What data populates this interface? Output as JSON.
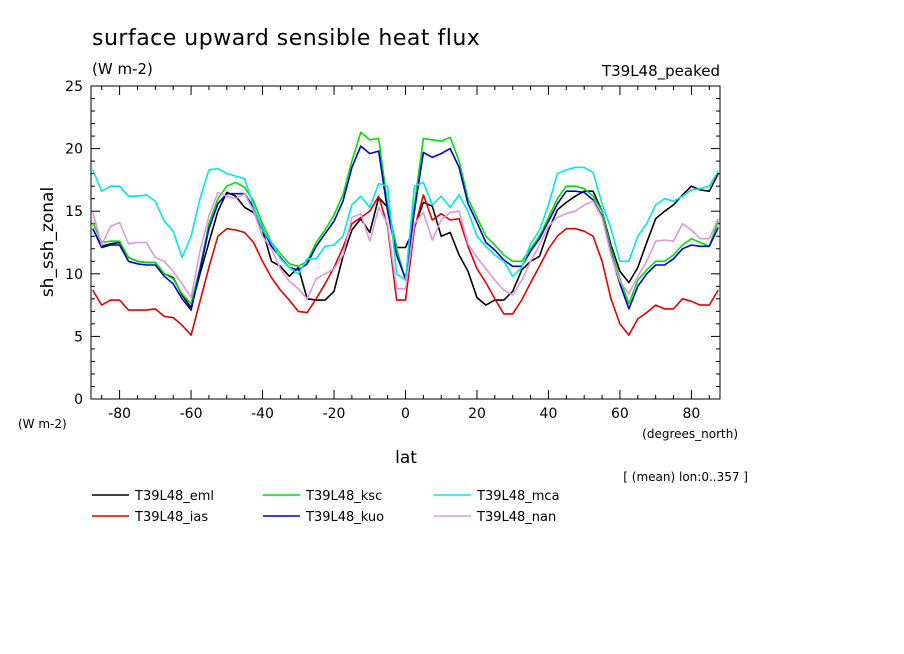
{
  "header": {
    "title": "surface upward sensible heat flux",
    "units": "(W m-2)",
    "experiment": "T39L48_peaked",
    "y_units_corner": "(W m-2)",
    "x_units_corner": "(degrees_north)",
    "mean_note": "[ (mean) lon:0..357 ]"
  },
  "chart_data": {
    "type": "line",
    "title": "surface upward sensible heat flux",
    "xlabel": "lat",
    "ylabel": "sh_ssh_zonal",
    "xlim": [
      -88,
      88
    ],
    "ylim": [
      0,
      25
    ],
    "xticks": [
      -80,
      -60,
      -40,
      -20,
      0,
      20,
      40,
      60,
      80
    ],
    "yticks": [
      0,
      5,
      10,
      15,
      20,
      25
    ],
    "legend_position": "below-left",
    "x": [
      -87.5,
      -85,
      -82.5,
      -80,
      -77.5,
      -75,
      -72.5,
      -70,
      -67.5,
      -65,
      -62.5,
      -60,
      -57.5,
      -55,
      -52.5,
      -50,
      -47.5,
      -45,
      -42.5,
      -40,
      -37.5,
      -35,
      -32.5,
      -30,
      -27.5,
      -25,
      -22.5,
      -20,
      -17.5,
      -15,
      -12.5,
      -10,
      -7.5,
      -5,
      -2.5,
      0,
      2.5,
      5,
      7.5,
      10,
      12.5,
      15,
      17.5,
      20,
      22.5,
      25,
      27.5,
      30,
      32.5,
      35,
      37.5,
      40,
      42.5,
      45,
      47.5,
      50,
      52.5,
      55,
      57.5,
      60,
      62.5,
      65,
      67.5,
      70,
      72.5,
      75,
      77.5,
      80,
      82.5,
      85,
      87.5
    ],
    "series": [
      {
        "name": "T39L48_eml",
        "color": "#000000",
        "values": [
          13.6,
          12.2,
          12.4,
          12.5,
          11.3,
          11.0,
          10.9,
          10.9,
          10.0,
          9.7,
          8.3,
          7.3,
          10.0,
          12.5,
          15.0,
          16.5,
          16.2,
          15.3,
          14.9,
          13.5,
          11.0,
          10.6,
          9.8,
          10.5,
          8.0,
          7.9,
          7.9,
          8.6,
          11.4,
          13.5,
          14.4,
          13.3,
          16.1,
          15.3,
          12.1,
          12.1,
          13.7,
          15.7,
          15.4,
          13.0,
          13.3,
          11.5,
          10.2,
          8.1,
          7.5,
          7.9,
          7.9,
          8.6,
          10.3,
          11.0,
          11.4,
          13.5,
          15.1,
          15.7,
          16.2,
          16.6,
          16.6,
          15.0,
          12.3,
          10.2,
          9.3,
          10.5,
          12.5,
          14.4,
          15.0,
          15.5,
          16.3,
          17.0,
          16.7,
          16.6,
          18.0
        ]
      },
      {
        "name": "T39L48_ias",
        "color": "#e00000",
        "values": [
          8.7,
          7.5,
          7.9,
          7.9,
          7.1,
          7.1,
          7.1,
          7.2,
          6.6,
          6.5,
          5.9,
          5.1,
          7.8,
          10.5,
          13.0,
          13.6,
          13.5,
          13.3,
          12.5,
          11.0,
          9.7,
          8.7,
          7.9,
          7.0,
          6.9,
          8.0,
          9.2,
          10.5,
          12.1,
          14.0,
          14.5,
          15.0,
          16.2,
          13.8,
          7.9,
          7.9,
          13.6,
          16.3,
          14.3,
          14.8,
          14.3,
          14.4,
          12.2,
          10.4,
          9.3,
          8.0,
          6.8,
          6.8,
          7.9,
          9.3,
          10.6,
          12.0,
          13.0,
          13.6,
          13.6,
          13.4,
          13.0,
          11.0,
          8.0,
          6.0,
          5.1,
          6.4,
          6.9,
          7.5,
          7.2,
          7.2,
          8.0,
          7.8,
          7.5,
          7.5,
          8.7
        ]
      },
      {
        "name": "T39L48_ksc",
        "color": "#00dd00",
        "values": [
          14.1,
          12.5,
          12.6,
          12.6,
          11.3,
          11.0,
          10.9,
          10.9,
          10.0,
          9.6,
          8.4,
          7.6,
          10.5,
          14.0,
          16.0,
          17.0,
          17.3,
          16.9,
          15.8,
          14.0,
          12.5,
          11.6,
          10.8,
          10.6,
          11.0,
          12.5,
          13.5,
          14.7,
          16.3,
          19.0,
          21.3,
          20.7,
          20.8,
          15.5,
          12.0,
          9.5,
          15.5,
          20.8,
          20.7,
          20.6,
          20.9,
          19.0,
          16.0,
          14.5,
          13.0,
          12.3,
          11.5,
          11.0,
          11.0,
          12.0,
          13.0,
          14.5,
          16.0,
          17.0,
          17.0,
          16.8,
          16.2,
          15.0,
          12.0,
          9.6,
          7.6,
          9.5,
          10.3,
          11.0,
          11.0,
          11.5,
          12.3,
          12.8,
          12.5,
          12.2,
          14.2
        ]
      },
      {
        "name": "T39L48_kuo",
        "color": "#0000cc",
        "values": [
          13.6,
          12.1,
          12.3,
          12.3,
          11.0,
          10.8,
          10.7,
          10.7,
          9.8,
          9.2,
          8.0,
          7.1,
          10.3,
          13.6,
          15.6,
          16.4,
          16.4,
          16.4,
          15.3,
          13.6,
          12.2,
          11.3,
          10.5,
          10.3,
          10.8,
          12.2,
          13.2,
          14.2,
          15.8,
          18.5,
          20.2,
          19.6,
          19.8,
          15.0,
          11.5,
          9.6,
          15.0,
          19.7,
          19.3,
          19.6,
          20.0,
          18.5,
          15.6,
          14.1,
          12.5,
          11.9,
          11.1,
          10.6,
          10.6,
          11.8,
          12.8,
          14.2,
          15.6,
          16.6,
          16.6,
          16.5,
          15.9,
          14.6,
          11.6,
          9.2,
          7.2,
          9.0,
          10.0,
          10.7,
          10.7,
          11.2,
          12.0,
          12.3,
          12.2,
          12.2,
          13.7
        ]
      },
      {
        "name": "T39L48_mca",
        "color": "#00e6e6",
        "values": [
          18.3,
          16.6,
          17.0,
          17.0,
          16.2,
          16.2,
          16.3,
          15.8,
          14.2,
          13.4,
          11.3,
          13.0,
          16.0,
          18.3,
          18.4,
          18.0,
          17.8,
          17.6,
          15.4,
          13.5,
          12.5,
          11.2,
          10.5,
          10.0,
          11.2,
          11.2,
          12.2,
          12.3,
          13.0,
          15.5,
          16.2,
          15.3,
          17.2,
          17.0,
          10.0,
          9.5,
          17.0,
          17.3,
          15.5,
          16.2,
          15.3,
          16.3,
          15.0,
          13.0,
          12.2,
          11.5,
          11.0,
          9.8,
          10.5,
          12.4,
          13.5,
          15.5,
          18.0,
          18.3,
          18.5,
          18.5,
          18.1,
          15.6,
          13.6,
          11.0,
          11.0,
          13.0,
          14.0,
          15.5,
          16.0,
          15.8,
          16.2,
          16.7,
          16.8,
          17.0,
          18.2
        ]
      },
      {
        "name": "T39L48_nan",
        "color": "#dd99dd",
        "values": [
          14.9,
          12.3,
          13.8,
          14.1,
          12.4,
          12.5,
          12.5,
          11.3,
          11.0,
          10.2,
          9.2,
          8.1,
          11.8,
          14.6,
          16.5,
          16.2,
          16.0,
          16.4,
          15.0,
          13.0,
          12.0,
          10.4,
          9.4,
          8.8,
          8.0,
          9.6,
          10.0,
          10.4,
          11.5,
          14.5,
          14.8,
          12.6,
          15.3,
          14.0,
          8.8,
          8.8,
          14.0,
          14.9,
          12.7,
          14.3,
          14.9,
          15.0,
          12.4,
          11.3,
          10.4,
          9.5,
          8.7,
          8.3,
          9.5,
          11.0,
          12.3,
          13.8,
          14.5,
          14.8,
          15.0,
          15.5,
          15.8,
          14.5,
          11.5,
          9.4,
          8.4,
          9.8,
          11.0,
          12.6,
          12.7,
          12.6,
          14.0,
          13.5,
          12.8,
          12.8,
          14.4
        ]
      }
    ]
  }
}
